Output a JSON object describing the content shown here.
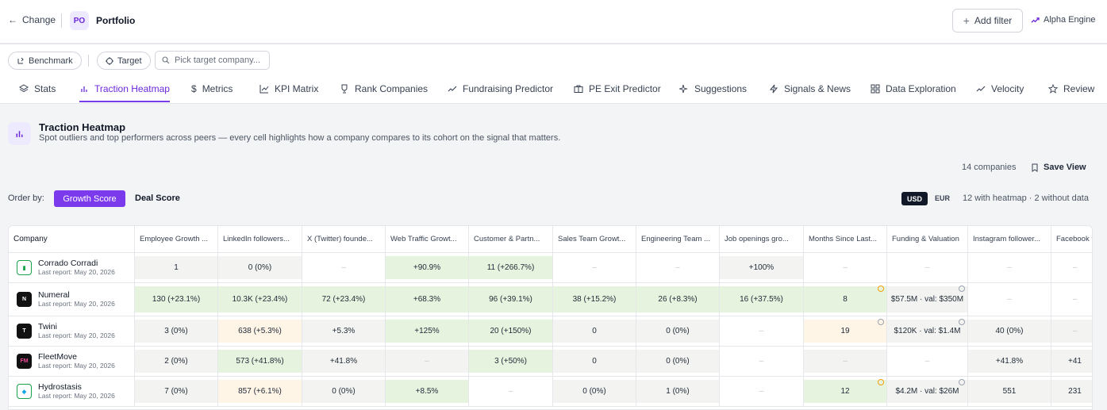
{
  "topbar": {
    "back_label": "Change",
    "avatar": "PO",
    "title": "Portfolio",
    "add_filter": "Add filter",
    "engine": "Alpha Engine"
  },
  "toolbar": {
    "benchmark": "Benchmark",
    "target": "Target",
    "search_placeholder": "Pick target company..."
  },
  "tabs": [
    {
      "label": "Stats",
      "icon": "layers-icon"
    },
    {
      "label": "Traction Heatmap",
      "icon": "bar-chart-icon",
      "active": true
    },
    {
      "label": "Metrics",
      "icon": "dollar-icon"
    },
    {
      "label": "KPI Matrix",
      "icon": "line-chart-icon"
    },
    {
      "label": "Rank Companies",
      "icon": "trophy-icon"
    },
    {
      "label": "Fundraising Predictor",
      "icon": "trend-up-icon"
    },
    {
      "label": "PE Exit Predictor",
      "icon": "briefcase-icon"
    },
    {
      "label": "Suggestions",
      "icon": "sparkles-icon"
    },
    {
      "label": "Signals & News",
      "icon": "bolt-icon"
    },
    {
      "label": "Data Exploration",
      "icon": "grid-icon"
    },
    {
      "label": "Velocity",
      "icon": "trend-up-icon"
    },
    {
      "label": "Review",
      "icon": "star-icon"
    }
  ],
  "header": {
    "title": "Traction Heatmap",
    "subtitle": "Spot outliers and top performers across peers — every cell highlights how a company compares to its cohort on the signal that matters."
  },
  "summary": {
    "count": "14 companies",
    "save_view": "Save View",
    "order_by": "Order by:",
    "growth_score": "Growth Score",
    "deal_score": "Deal Score",
    "usd": "USD",
    "eur": "EUR",
    "heatmap_stat": "12 with heatmap · 2 without data"
  },
  "table": {
    "columns": [
      "Company",
      "Employee Growth ...",
      "LinkedIn followers...",
      "X (Twitter) founde...",
      "Web Traffic Growt...",
      "Customer & Partn...",
      "Sales Team Growt...",
      "Engineering Team ...",
      "Job openings gro...",
      "Months Since Last...",
      "Funding & Valuation",
      "Instagram follower...",
      "Facebook f"
    ],
    "rows": [
      {
        "name": "Corrado Corradi",
        "report": "Last report: May 20, 2026",
        "cells": [
          "1",
          "0 (0%)",
          "–",
          "+90.9%",
          "11 (+266.7%)",
          "–",
          "–",
          "+100%",
          "–",
          "–",
          "–",
          "–"
        ]
      },
      {
        "name": "Numeral",
        "report": "Last report: May 20, 2026",
        "cells": [
          "130 (+23.1%)",
          "10.3K (+23.4%)",
          "72 (+23.4%)",
          "+68.3%",
          "96 (+39.1%)",
          "38 (+15.2%)",
          "26 (+8.3%)",
          "16 (+37.5%)",
          "8",
          "$57.5M · val: $350M",
          "–",
          "–"
        ]
      },
      {
        "name": "Twini",
        "report": "Last report: May 20, 2026",
        "cells": [
          "3 (0%)",
          "638 (+5.3%)",
          "+5.3%",
          "+125%",
          "20 (+150%)",
          "0",
          "0 (0%)",
          "–",
          "19",
          "$120K · val: $1.4M",
          "40 (0%)",
          "–"
        ]
      },
      {
        "name": "FleetMove",
        "report": "Last report: May 20, 2026",
        "cells": [
          "2 (0%)",
          "573 (+41.8%)",
          "+41.8%",
          "–",
          "3 (+50%)",
          "0",
          "0 (0%)",
          "–",
          "–",
          "–",
          "+41.8%",
          "+41"
        ]
      },
      {
        "name": "Hydrostasis",
        "report": "Last report: May 20, 2026",
        "cells": [
          "7 (0%)",
          "857 (+6.1%)",
          "0 (0%)",
          "+8.5%",
          "–",
          "0 (0%)",
          "1 (0%)",
          "–",
          "12",
          "$4.2M · val: $26M",
          "551",
          "231"
        ]
      }
    ]
  },
  "colors": {
    "accent": "#7c3aed",
    "green_cell": "#e6f4df",
    "orange_cell": "#fff5e6",
    "gray_cell": "#f3f4f1"
  }
}
